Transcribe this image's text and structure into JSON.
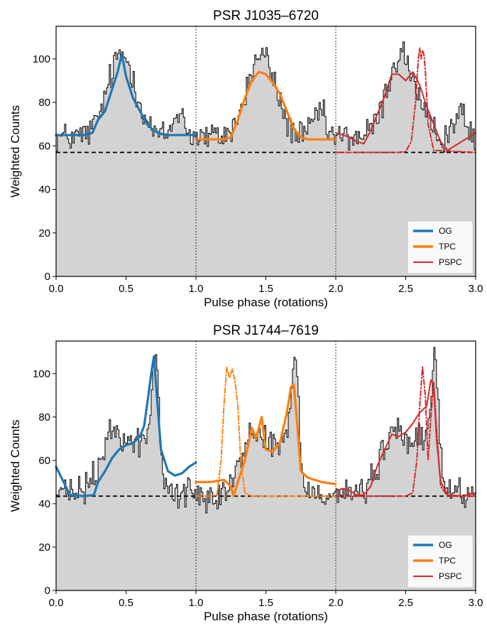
{
  "chart_data": [
    {
      "type": "line",
      "title": "PSR J1035–6720",
      "xlabel": "Pulse phase (rotations)",
      "ylabel": "Weighted Counts",
      "xlim": [
        0,
        3
      ],
      "ylim": [
        0,
        115
      ],
      "xticks": [
        0.0,
        0.5,
        1.0,
        1.5,
        2.0,
        2.5,
        3.0
      ],
      "xtick_labels": [
        "0.0",
        "0.5",
        "1.0",
        "1.5",
        "2.0",
        "2.5",
        "3.0"
      ],
      "yticks": [
        0,
        20,
        40,
        60,
        80,
        100
      ],
      "ytick_labels": [
        "0",
        "20",
        "40",
        "60",
        "80",
        "100"
      ],
      "grid": false,
      "legend_position": "bottom-right",
      "background_level": 57,
      "phase_dividers": [
        1.0,
        2.0
      ],
      "histogram": {
        "baseline": 64,
        "profile_peaks": [
          {
            "center": 0.47,
            "width": 0.1,
            "height": 38
          },
          {
            "center": 0.88,
            "width": 0.04,
            "height": 12
          }
        ],
        "repeat_period": 1
      },
      "series": [
        {
          "name": "OG",
          "color": "#1f77b4",
          "style": "solid",
          "x": [
            0.0,
            0.1,
            0.2,
            0.26,
            0.3,
            0.35,
            0.4,
            0.44,
            0.47,
            0.5,
            0.55,
            0.6,
            0.65,
            0.7,
            0.75,
            0.8,
            0.9,
            1.0
          ],
          "y": [
            65,
            65,
            65,
            66,
            72,
            76,
            86,
            94,
            102,
            92,
            82,
            76,
            70,
            67,
            65.5,
            65,
            65,
            65
          ]
        },
        {
          "name": "TPC",
          "color": "#ff7f0e",
          "style": "solid",
          "x": [
            1.0,
            1.1,
            1.2,
            1.25,
            1.3,
            1.35,
            1.4,
            1.45,
            1.5,
            1.55,
            1.6,
            1.65,
            1.7,
            1.75,
            1.8,
            1.9,
            2.0
          ],
          "y": [
            63,
            63,
            63,
            64,
            72,
            82,
            90,
            94,
            93,
            89,
            84,
            76,
            68,
            64,
            63,
            63,
            63
          ]
        },
        {
          "name": "PSPC",
          "color": "#d62728",
          "style": "solid",
          "x": [
            2.0,
            2.1,
            2.15,
            2.2,
            2.25,
            2.3,
            2.35,
            2.4,
            2.45,
            2.5,
            2.55,
            2.6,
            2.65,
            2.7,
            2.75,
            2.8,
            2.9,
            3.0
          ],
          "y": [
            66,
            64,
            62,
            61,
            67,
            75,
            83,
            93,
            93,
            90,
            94,
            88,
            78,
            70,
            62,
            58,
            62,
            66
          ]
        },
        {
          "name": "",
          "color": "#d62728",
          "style": "dashdot",
          "x": [
            2.0,
            2.45,
            2.5,
            2.54,
            2.57,
            2.59,
            2.6,
            2.61,
            2.62,
            2.63,
            2.64,
            2.66,
            2.7,
            3.0
          ],
          "y": [
            57,
            57,
            57.5,
            62,
            80,
            100,
            105,
            100,
            104,
            102,
            95,
            70,
            58,
            57
          ]
        }
      ]
    },
    {
      "type": "line",
      "title": "PSR J1744–7619",
      "xlabel": "Pulse phase (rotations)",
      "ylabel": "Weighted Counts",
      "xlim": [
        0,
        3
      ],
      "ylim": [
        0,
        115
      ],
      "xticks": [
        0.0,
        0.5,
        1.0,
        1.5,
        2.0,
        2.5,
        3.0
      ],
      "xtick_labels": [
        "0.0",
        "0.5",
        "1.0",
        "1.5",
        "2.0",
        "2.5",
        "3.0"
      ],
      "yticks": [
        0,
        20,
        40,
        60,
        80,
        100
      ],
      "ytick_labels": [
        "0",
        "20",
        "40",
        "60",
        "80",
        "100"
      ],
      "grid": false,
      "legend_position": "bottom-right",
      "background_level": 43.5,
      "phase_dividers": [
        1.0,
        2.0
      ],
      "histogram": {
        "baseline": 45,
        "profile_peaks": [
          {
            "center": 0.42,
            "width": 0.09,
            "height": 28
          },
          {
            "center": 0.63,
            "width": 0.08,
            "height": 22
          },
          {
            "center": 0.71,
            "width": 0.025,
            "height": 50
          }
        ],
        "repeat_period": 1
      },
      "series": [
        {
          "name": "OG",
          "color": "#1f77b4",
          "style": "solid",
          "x": [
            0.0,
            0.1,
            0.2,
            0.27,
            0.3,
            0.35,
            0.4,
            0.45,
            0.5,
            0.55,
            0.6,
            0.63,
            0.66,
            0.68,
            0.7,
            0.72,
            0.75,
            0.8,
            0.85,
            0.9,
            0.95,
            1.0
          ],
          "y": [
            57,
            44,
            43.5,
            44,
            50,
            55,
            61,
            65,
            67,
            68,
            71,
            76,
            90,
            100,
            108,
            90,
            65,
            55,
            53,
            54,
            57,
            59
          ]
        },
        {
          "name": "TPC",
          "color": "#ff7f0e",
          "style": "solid",
          "x": [
            1.0,
            1.1,
            1.2,
            1.25,
            1.27,
            1.3,
            1.35,
            1.4,
            1.43,
            1.47,
            1.5,
            1.55,
            1.6,
            1.65,
            1.68,
            1.7,
            1.72,
            1.75,
            1.8,
            1.9,
            2.0
          ],
          "y": [
            50,
            50,
            51,
            48,
            43.5,
            50,
            60,
            75,
            70,
            80,
            65,
            64,
            68,
            82,
            94,
            95,
            80,
            55,
            52,
            50,
            49
          ]
        },
        {
          "name": "",
          "color": "#ff7f0e",
          "style": "dashdot",
          "x": [
            1.0,
            1.1,
            1.15,
            1.18,
            1.2,
            1.22,
            1.24,
            1.26,
            1.28,
            1.3,
            1.32,
            1.35,
            1.4,
            2.0
          ],
          "y": [
            43.5,
            43.5,
            44,
            60,
            85,
            103,
            98,
            102,
            96,
            85,
            60,
            45,
            43.5,
            43.5
          ]
        },
        {
          "name": "PSPC",
          "color": "#d62728",
          "style": "solid",
          "x": [
            2.0,
            2.05,
            2.1,
            2.15,
            2.2,
            2.25,
            2.3,
            2.35,
            2.4,
            2.45,
            2.5,
            2.55,
            2.6,
            2.65,
            2.68,
            2.7,
            2.72,
            2.75,
            2.8,
            2.9,
            3.0
          ],
          "y": [
            46,
            47,
            46,
            44,
            44,
            48,
            58,
            65,
            72,
            71,
            73,
            77,
            82,
            85,
            97,
            95,
            70,
            50,
            44,
            43.5,
            45
          ]
        },
        {
          "name": "",
          "color": "#d62728",
          "style": "dashdot",
          "x": [
            2.0,
            2.5,
            2.55,
            2.58,
            2.6,
            2.62,
            2.64,
            2.66,
            2.68,
            2.7,
            2.72,
            2.75,
            2.8,
            3.0
          ],
          "y": [
            43.5,
            43.5,
            45,
            60,
            85,
            103,
            90,
            60,
            80,
            96,
            75,
            48,
            43.5,
            43.5
          ]
        }
      ]
    }
  ]
}
